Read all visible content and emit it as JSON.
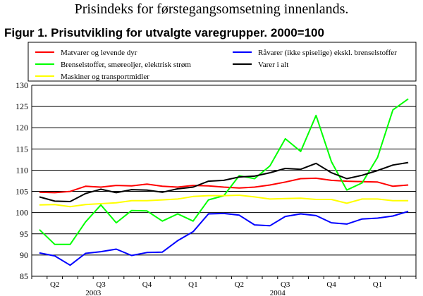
{
  "header": {
    "title": "Prisindeks for førstegangsomsetning innenlands."
  },
  "figure": {
    "title": "Figur 1. Prisutvikling for utvalgte varegrupper. 2000=100"
  },
  "chart_data": {
    "type": "line",
    "title": "Figur 1. Prisutvikling for utvalgte varegrupper. 2000=100",
    "xlabel": "",
    "ylabel": "",
    "ylim": [
      85,
      130
    ],
    "yticks": [
      85,
      90,
      95,
      100,
      105,
      110,
      115,
      120,
      125,
      130
    ],
    "grid": true,
    "legend_position": "top",
    "x": [
      "2003-05",
      "2003-06",
      "2003-07",
      "2003-08",
      "2003-09",
      "2003-10",
      "2003-11",
      "2003-12",
      "2004-01",
      "2004-02",
      "2004-03",
      "2004-04",
      "2004-05",
      "2004-06",
      "2004-07",
      "2004-08",
      "2004-09",
      "2004-10",
      "2004-11",
      "2004-12",
      "2005-01",
      "2005-02",
      "2005-03",
      "2005-04",
      "2005-05"
    ],
    "quarter_labels": [
      {
        "label": "Q2",
        "start": 0,
        "end": 2
      },
      {
        "label": "Q3",
        "start": 3,
        "end": 5
      },
      {
        "label": "Q4",
        "start": 6,
        "end": 8
      },
      {
        "label": "Q1",
        "start": 9,
        "end": 11
      },
      {
        "label": "Q2",
        "start": 12,
        "end": 14
      },
      {
        "label": "Q3",
        "start": 15,
        "end": 17
      },
      {
        "label": "Q4",
        "start": 18,
        "end": 20
      },
      {
        "label": "Q1",
        "start": 21,
        "end": 23
      }
    ],
    "year_labels": [
      {
        "label": "2003",
        "position": 3.5
      },
      {
        "label": "2004",
        "position": 15.5
      }
    ],
    "series": [
      {
        "name": "Matvarer og levende dyr",
        "color": "#ff0000",
        "values": [
          104.8,
          104.7,
          105.0,
          106.2,
          106.0,
          106.4,
          106.3,
          106.7,
          106.2,
          106.0,
          106.4,
          106.3,
          106.0,
          105.8,
          106.0,
          106.5,
          107.2,
          108.0,
          108.1,
          107.6,
          107.4,
          107.3,
          107.2,
          106.2,
          106.5
        ]
      },
      {
        "name": "Brenselstoffer, smøreoljer, elektrisk strøm",
        "color": "#00ff00",
        "values": [
          96.0,
          92.5,
          92.5,
          97.8,
          101.8,
          97.6,
          100.5,
          100.4,
          98.0,
          99.7,
          98.0,
          103.0,
          104.0,
          108.7,
          108.0,
          111.0,
          117.4,
          114.4,
          122.9,
          112.0,
          105.3,
          107.0,
          113.0,
          124.2,
          126.8
        ]
      },
      {
        "name": "Maskiner og transportmidler",
        "color": "#ffff00",
        "values": [
          101.8,
          101.9,
          101.4,
          101.9,
          102.1,
          102.3,
          102.8,
          102.8,
          103.0,
          103.2,
          103.8,
          104.0,
          104.0,
          104.1,
          103.7,
          103.2,
          103.3,
          103.4,
          103.1,
          103.1,
          102.2,
          103.2,
          103.2,
          102.8,
          102.8
        ]
      },
      {
        "name": "Råvarer (ikke spiselige) ekskl. brenselstoffer",
        "color": "#0000ff",
        "values": [
          90.5,
          89.8,
          87.6,
          90.4,
          90.8,
          91.4,
          89.9,
          90.6,
          90.7,
          93.4,
          95.5,
          99.7,
          99.8,
          99.4,
          97.1,
          96.9,
          99.1,
          99.7,
          99.3,
          97.6,
          97.3,
          98.5,
          98.7,
          99.2,
          100.3
        ]
      },
      {
        "name": "Varer i alt",
        "color": "#000000",
        "values": [
          103.7,
          102.7,
          102.6,
          104.5,
          105.5,
          104.7,
          105.4,
          105.3,
          104.8,
          105.6,
          106.0,
          107.4,
          107.6,
          108.4,
          108.6,
          109.4,
          110.4,
          110.2,
          111.6,
          109.4,
          108.0,
          108.8,
          109.9,
          111.2,
          111.8
        ]
      }
    ]
  }
}
